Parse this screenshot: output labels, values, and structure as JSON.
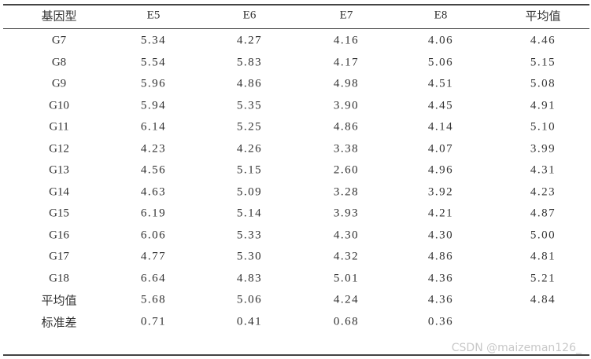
{
  "table": {
    "header": [
      "基因型",
      "E5",
      "E6",
      "E7",
      "E8",
      "平均值"
    ],
    "rows": [
      [
        "G7",
        "5.34",
        "4.27",
        "4.16",
        "4.06",
        "4.46"
      ],
      [
        "G8",
        "5.54",
        "5.83",
        "4.17",
        "5.06",
        "5.15"
      ],
      [
        "G9",
        "5.96",
        "4.86",
        "4.98",
        "4.51",
        "5.08"
      ],
      [
        "G10",
        "5.94",
        "5.35",
        "3.90",
        "4.45",
        "4.91"
      ],
      [
        "G11",
        "6.14",
        "5.25",
        "4.86",
        "4.14",
        "5.10"
      ],
      [
        "G12",
        "4.23",
        "4.26",
        "3.38",
        "4.07",
        "3.99"
      ],
      [
        "G13",
        "4.56",
        "5.15",
        "2.60",
        "4.96",
        "4.31"
      ],
      [
        "G14",
        "4.63",
        "5.09",
        "3.28",
        "3.92",
        "4.23"
      ],
      [
        "G15",
        "6.19",
        "5.14",
        "3.93",
        "4.21",
        "4.87"
      ],
      [
        "G16",
        "6.06",
        "5.33",
        "4.30",
        "4.30",
        "5.00"
      ],
      [
        "G17",
        "4.77",
        "5.30",
        "4.32",
        "4.86",
        "4.81"
      ],
      [
        "G18",
        "6.64",
        "4.83",
        "5.01",
        "4.36",
        "5.21"
      ],
      [
        "平均值",
        "5.68",
        "5.06",
        "4.24",
        "4.36",
        "4.84"
      ],
      [
        "标准差",
        "0.71",
        "0.41",
        "0.68",
        "0.36"
      ]
    ]
  },
  "watermark": "CSDN @maizeman126_"
}
